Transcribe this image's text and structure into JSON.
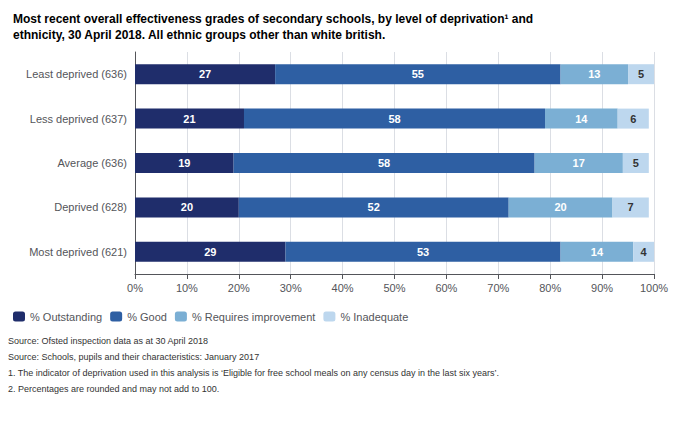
{
  "chart_data": {
    "type": "bar",
    "orientation": "horizontal",
    "stacked": true,
    "data_labels": true,
    "grid": true,
    "legend": "bottom",
    "title": "Most recent overall effectiveness grades of secondary schools, by level of deprivation¹ and\nethnicity, 30 April 2018. All ethnic groups other than white british.",
    "categories": [
      "Least deprived (636)",
      "Less deprived (637)",
      "Average (636)",
      "Deprived (628)",
      "Most deprived (621)"
    ],
    "series": [
      {
        "name": "% Outstanding",
        "color": "#1F2D6B",
        "values": [
          27,
          21,
          19,
          20,
          29
        ]
      },
      {
        "name": "% Good",
        "color": "#2E5FA3",
        "values": [
          55,
          58,
          58,
          52,
          53
        ]
      },
      {
        "name": "% Requires improvement",
        "color": "#7BAFD4",
        "values": [
          13,
          14,
          17,
          20,
          14
        ]
      },
      {
        "name": "% Inadequate",
        "color": "#BDD7EE",
        "values": [
          5,
          6,
          5,
          7,
          4
        ]
      }
    ],
    "xlim": [
      0,
      100
    ],
    "xticks": [
      {
        "value": 0,
        "label": "0%"
      },
      {
        "value": 10,
        "label": "10%"
      },
      {
        "value": 20,
        "label": "20%"
      },
      {
        "value": 30,
        "label": "30%"
      },
      {
        "value": 40,
        "label": "40%"
      },
      {
        "value": 50,
        "label": "50%"
      },
      {
        "value": 60,
        "label": "60%"
      },
      {
        "value": 70,
        "label": "70%"
      },
      {
        "value": 80,
        "label": "80%"
      },
      {
        "value": 90,
        "label": "90%"
      },
      {
        "value": 100,
        "label": "100%"
      }
    ],
    "annotations": [
      "Source: Ofsted inspection data as at 30 April 2018",
      "Source: Schools, pupils and their characteristics: January 2017",
      "1. The indicator of deprivation used in this analysis is ‘Eligible for free school meals on any census day in the last six years’.",
      "2. Percentages are rounded and may not add to 100."
    ]
  }
}
